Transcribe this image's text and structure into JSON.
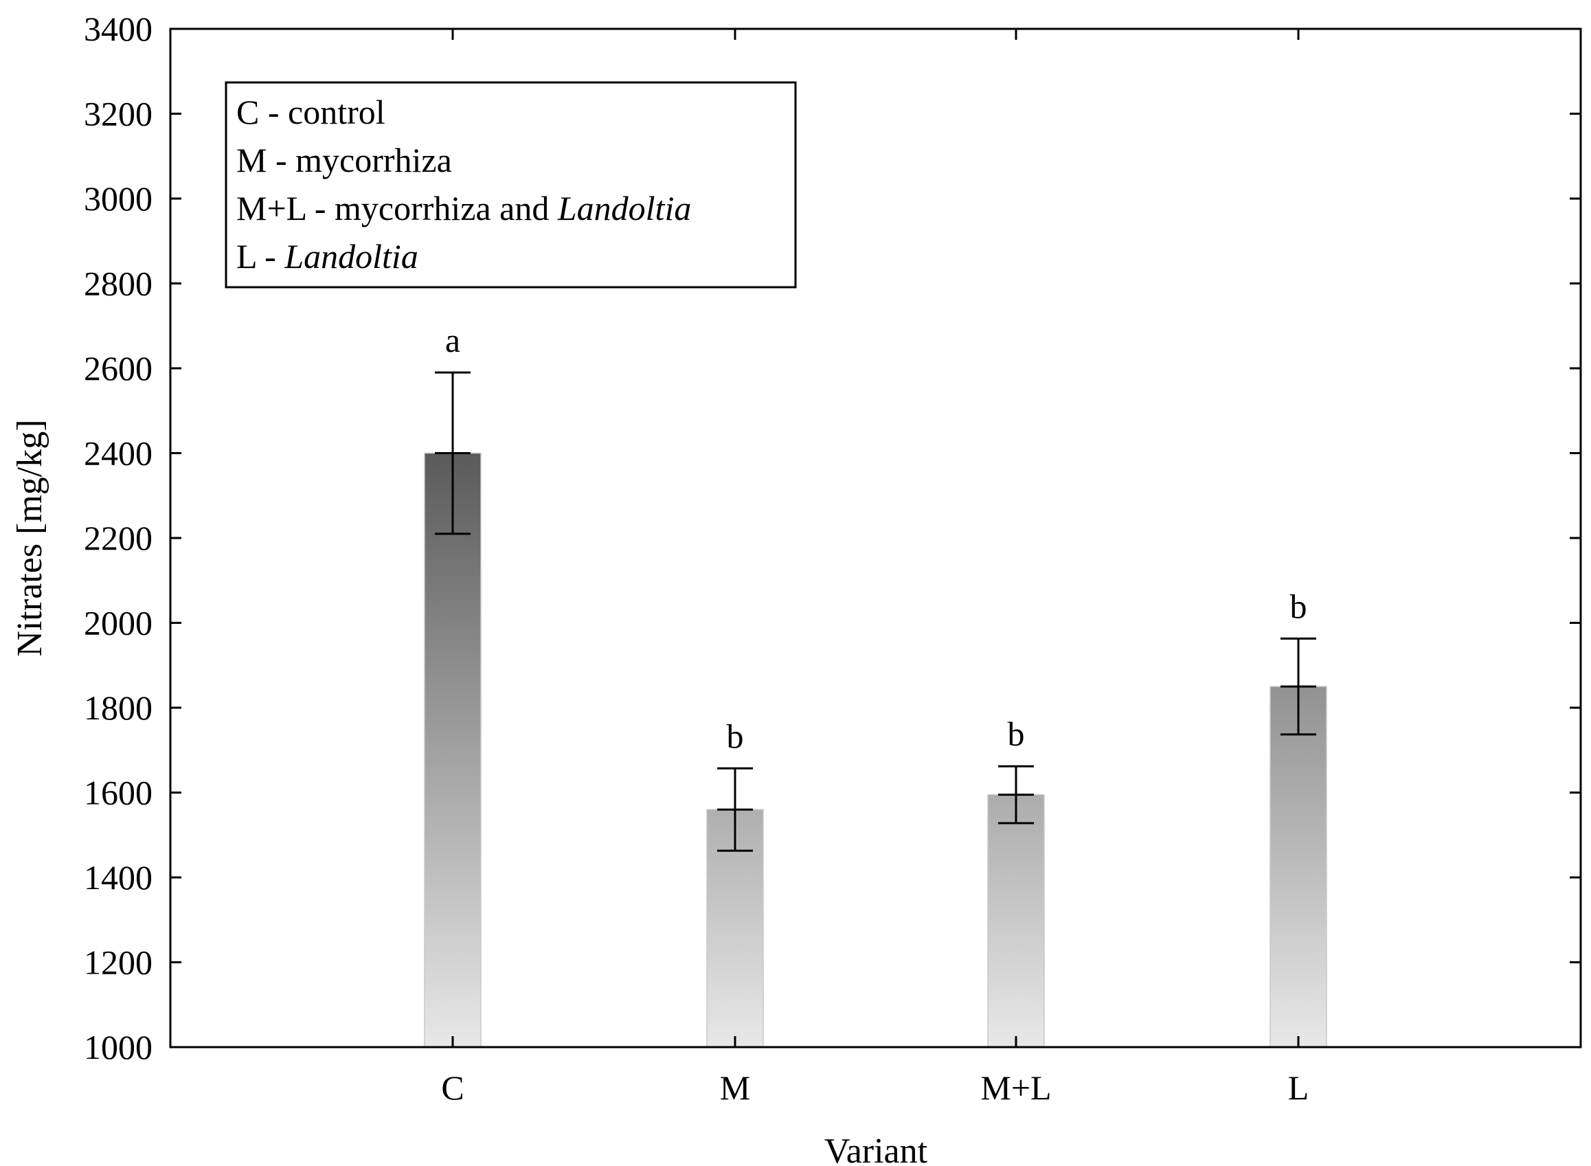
{
  "chart_data": {
    "type": "bar",
    "title": "",
    "xlabel": "Variant",
    "ylabel": "Nitrates [mg/kg]",
    "ylim": [
      1000,
      3400
    ],
    "yticks": [
      1000,
      1200,
      1400,
      1600,
      1800,
      2000,
      2200,
      2400,
      2600,
      2800,
      3000,
      3200,
      3400
    ],
    "categories": [
      "C",
      "M",
      "M+L",
      "L"
    ],
    "values": [
      2400,
      1560,
      1595,
      1850
    ],
    "errors": [
      190,
      97,
      67,
      113
    ],
    "group_letters": [
      "a",
      "b",
      "b",
      "b"
    ],
    "grid": false,
    "bar_gradient": {
      "top": "#5a5a5a",
      "bottom": "#e8e8e8"
    },
    "legend": {
      "placement": "top-left",
      "entries": [
        {
          "prefix": "C - ",
          "text": "control",
          "italic": false
        },
        {
          "prefix": "M - ",
          "text": "mycorrhiza",
          "italic": false
        },
        {
          "prefix": "M+L - mycorrhiza and ",
          "text": "Landoltia",
          "italic": true
        },
        {
          "prefix": "L - ",
          "text": "Landoltia",
          "italic": true
        }
      ]
    }
  }
}
